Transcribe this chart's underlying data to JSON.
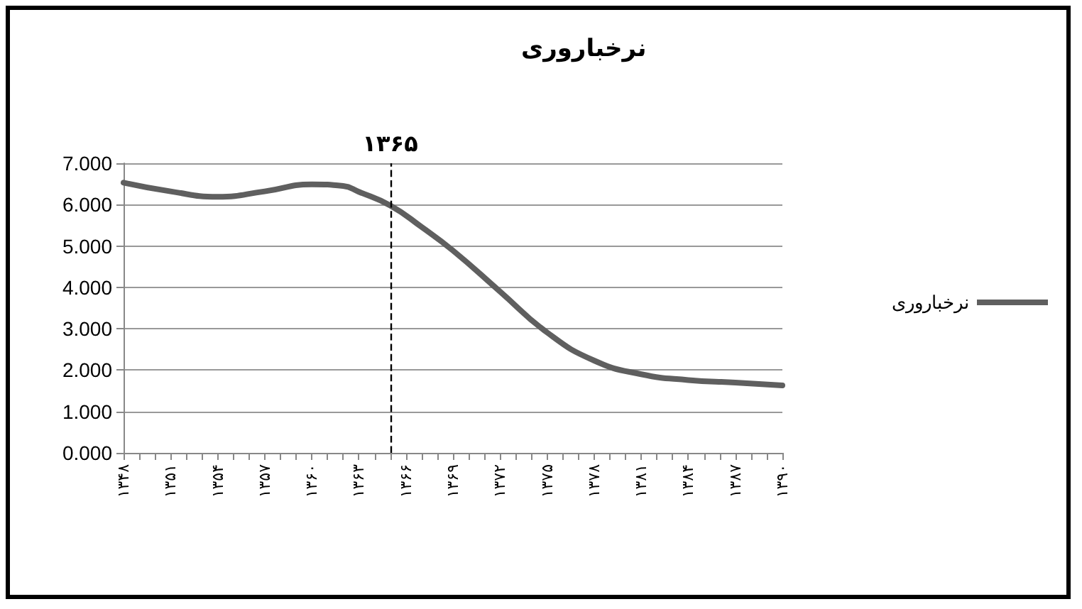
{
  "chart_data": {
    "type": "line",
    "title": "نرخباروری",
    "x": [
      1348,
      1351,
      1354,
      1357,
      1360,
      1362,
      1363,
      1365,
      1367,
      1369,
      1372,
      1375,
      1378,
      1381,
      1384,
      1387,
      1390
    ],
    "series": [
      {
        "name": "نرخباروری",
        "color": "#5f5f5f",
        "values": [
          6.53,
          6.32,
          6.19,
          6.32,
          6.49,
          6.45,
          6.31,
          5.98,
          5.46,
          4.89,
          3.9,
          2.91,
          2.23,
          1.9,
          1.76,
          1.7,
          1.63
        ]
      }
    ],
    "xlim": [
      1348,
      1390
    ],
    "xticks": [
      {
        "value": 1348,
        "label": "۱۳۴۸"
      },
      {
        "value": 1349,
        "label": null
      },
      {
        "value": 1350,
        "label": null
      },
      {
        "value": 1351,
        "label": "۱۳۵۱"
      },
      {
        "value": 1352,
        "label": null
      },
      {
        "value": 1353,
        "label": null
      },
      {
        "value": 1354,
        "label": "۱۳۵۴"
      },
      {
        "value": 1355,
        "label": null
      },
      {
        "value": 1356,
        "label": null
      },
      {
        "value": 1357,
        "label": "۱۳۵۷"
      },
      {
        "value": 1358,
        "label": null
      },
      {
        "value": 1359,
        "label": null
      },
      {
        "value": 1360,
        "label": "۱۳۶۰"
      },
      {
        "value": 1361,
        "label": null
      },
      {
        "value": 1362,
        "label": null
      },
      {
        "value": 1363,
        "label": "۱۳۶۳"
      },
      {
        "value": 1364,
        "label": null
      },
      {
        "value": 1365,
        "label": null
      },
      {
        "value": 1366,
        "label": "۱۳۶۶"
      },
      {
        "value": 1367,
        "label": null
      },
      {
        "value": 1368,
        "label": null
      },
      {
        "value": 1369,
        "label": "۱۳۶۹"
      },
      {
        "value": 1370,
        "label": null
      },
      {
        "value": 1371,
        "label": null
      },
      {
        "value": 1372,
        "label": "۱۳۷۲"
      },
      {
        "value": 1373,
        "label": null
      },
      {
        "value": 1374,
        "label": null
      },
      {
        "value": 1375,
        "label": "۱۳۷۵"
      },
      {
        "value": 1376,
        "label": null
      },
      {
        "value": 1377,
        "label": null
      },
      {
        "value": 1378,
        "label": "۱۳۷۸"
      },
      {
        "value": 1379,
        "label": null
      },
      {
        "value": 1380,
        "label": null
      },
      {
        "value": 1381,
        "label": "۱۳۸۱"
      },
      {
        "value": 1382,
        "label": null
      },
      {
        "value": 1383,
        "label": null
      },
      {
        "value": 1384,
        "label": "۱۳۸۴"
      },
      {
        "value": 1385,
        "label": null
      },
      {
        "value": 1386,
        "label": null
      },
      {
        "value": 1387,
        "label": "۱۳۸۷"
      },
      {
        "value": 1388,
        "label": null
      },
      {
        "value": 1389,
        "label": null
      },
      {
        "value": 1390,
        "label": "۱۳۹۰"
      }
    ],
    "ylim": [
      0,
      7
    ],
    "yticks": [
      {
        "value": 0,
        "label": "0.000"
      },
      {
        "value": 1,
        "label": "1.000"
      },
      {
        "value": 2,
        "label": "2.000"
      },
      {
        "value": 3,
        "label": "3.000"
      },
      {
        "value": 4,
        "label": "4.000"
      },
      {
        "value": 5,
        "label": "5.000"
      },
      {
        "value": 6,
        "label": "6.000"
      },
      {
        "value": 7,
        "label": "7.000"
      }
    ],
    "ref_lines": [
      {
        "axis": "x",
        "value": 1365,
        "label": "۱۳۶۵",
        "color": "#000000",
        "line_style": "dashed"
      }
    ],
    "grid": "y",
    "legend": "right",
    "marker": "none",
    "line_style": "solid"
  }
}
